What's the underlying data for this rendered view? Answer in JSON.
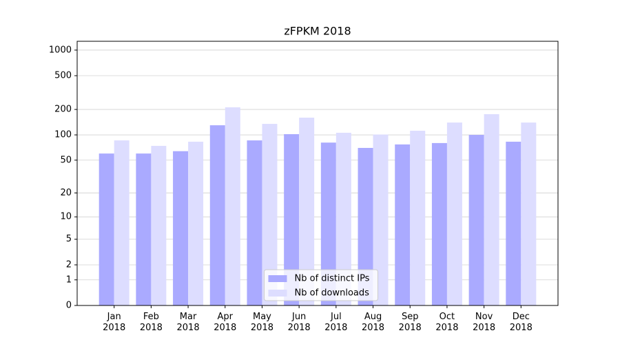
{
  "chart_data": {
    "type": "bar",
    "title": "zFPKM 2018",
    "categories": [
      "Jan\n2018",
      "Feb\n2018",
      "Mar\n2018",
      "Apr\n2018",
      "May\n2018",
      "Jun\n2018",
      "Jul\n2018",
      "Aug\n2018",
      "Sep\n2018",
      "Oct\n2018",
      "Nov\n2018",
      "Dec\n2018"
    ],
    "series": [
      {
        "name": "Nb of distinct IPs",
        "color": "#aaaaff",
        "values": [
          60,
          60,
          64,
          130,
          86,
          102,
          81,
          70,
          77,
          80,
          100,
          83
        ]
      },
      {
        "name": "Nb of downloads",
        "color": "#ddddff",
        "values": [
          86,
          74,
          83,
          212,
          135,
          160,
          106,
          101,
          112,
          140,
          176,
          140
        ]
      }
    ],
    "yscale": "log1p",
    "ylim": [
      0,
      1270
    ],
    "yticks": [
      0,
      1,
      2,
      5,
      10,
      20,
      50,
      100,
      200,
      500,
      1000
    ],
    "grid": true,
    "legend": "lower center"
  }
}
